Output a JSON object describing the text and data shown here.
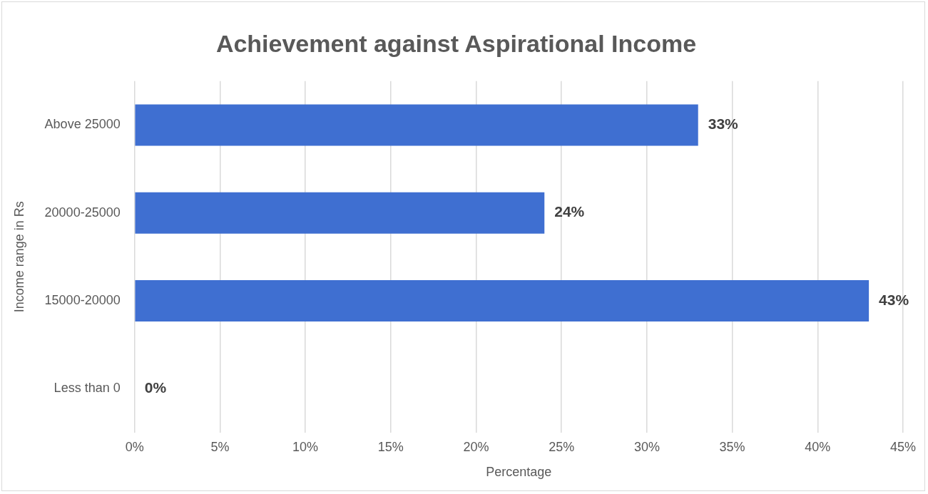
{
  "chart_data": {
    "type": "bar",
    "orientation": "horizontal",
    "title": "Achievement against Aspirational Income",
    "xlabel": "Percentage",
    "ylabel": "Income range in Rs",
    "categories": [
      "Above 25000",
      "20000-25000",
      "15000-20000",
      "Less than 0"
    ],
    "values": [
      33,
      24,
      43,
      0
    ],
    "value_labels": [
      "33%",
      "24%",
      "43%",
      "0%"
    ],
    "color": "#3f6fd1",
    "xlim": [
      0,
      45
    ],
    "xticks": [
      {
        "value": 0,
        "label": "0%"
      },
      {
        "value": 5,
        "label": "5%"
      },
      {
        "value": 10,
        "label": "10%"
      },
      {
        "value": 15,
        "label": "15%"
      },
      {
        "value": 20,
        "label": "20%"
      },
      {
        "value": 25,
        "label": "25%"
      },
      {
        "value": 30,
        "label": "30%"
      },
      {
        "value": 35,
        "label": "35%"
      },
      {
        "value": 40,
        "label": "40%"
      },
      {
        "value": 45,
        "label": "45%"
      }
    ],
    "grid": "x",
    "legend": false
  }
}
